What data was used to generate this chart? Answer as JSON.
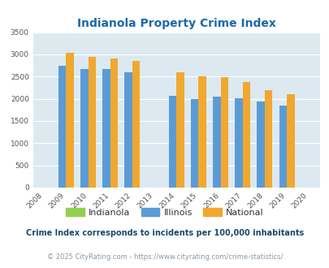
{
  "title": "Indianola Property Crime Index",
  "years": [
    2008,
    2009,
    2010,
    2011,
    2012,
    2013,
    2014,
    2015,
    2016,
    2017,
    2018,
    2019,
    2020
  ],
  "illinois_values": {
    "2009": 2750,
    "2010": 2670,
    "2011": 2670,
    "2012": 2590,
    "2014": 2060,
    "2015": 1990,
    "2016": 2050,
    "2017": 2010,
    "2018": 1940,
    "2019": 1840
  },
  "national_values": {
    "2009": 3040,
    "2010": 2950,
    "2011": 2910,
    "2012": 2860,
    "2014": 2600,
    "2015": 2500,
    "2016": 2480,
    "2017": 2380,
    "2018": 2200,
    "2019": 2110
  },
  "indianola_values": {},
  "bar_width": 0.35,
  "illinois_color": "#5b9bd5",
  "national_color": "#f0a830",
  "indianola_color": "#92d050",
  "background_color": "#dce9f0",
  "ylim": [
    0,
    3500
  ],
  "yticks": [
    0,
    500,
    1000,
    1500,
    2000,
    2500,
    3000,
    3500
  ],
  "subtitle": "Crime Index corresponds to incidents per 100,000 inhabitants",
  "footer": "© 2025 CityRating.com - https://www.cityrating.com/crime-statistics/",
  "subtitle_color": "#1a4a6b",
  "footer_color": "#8899aa",
  "title_color": "#1a6aaa",
  "axis_label_color": "#555555",
  "grid_color": "#ffffff"
}
